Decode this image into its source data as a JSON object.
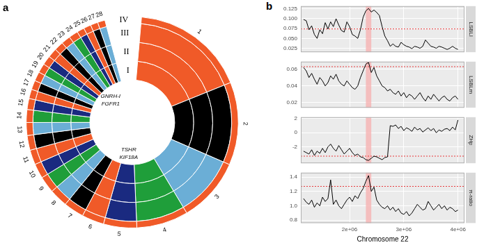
{
  "chart_data": [
    {
      "type": "doughnut",
      "title": "a",
      "categories": [
        "1",
        "2",
        "3",
        "4",
        "5",
        "6",
        "7",
        "8",
        "9",
        "10",
        "11",
        "12",
        "13",
        "14",
        "15",
        "16",
        "17",
        "18",
        "19",
        "20",
        "21",
        "22",
        "23",
        "24",
        "25",
        "26",
        "27",
        "28"
      ],
      "series": [
        {
          "name": "IV",
          "color": "#f05a28",
          "values": [
            62,
            45,
            35,
            28,
            18,
            12,
            11,
            10,
            9,
            8,
            8,
            8,
            7,
            7,
            6,
            5,
            5,
            5,
            5,
            5,
            5,
            5,
            5,
            5,
            4,
            4,
            4,
            4
          ]
        },
        {
          "name": "III",
          "colors": [
            "#f05a28",
            "#000000",
            "#6baed6",
            "#1f9e3a",
            "#1a2a80",
            "#f05a28",
            "#000000",
            "#6baed6",
            "#1f9e3a",
            "#1a2a80",
            "#f05a28",
            "#000000",
            "#6baed6",
            "#1f9e3a",
            "#1a2a80",
            "#f05a28",
            "#000000",
            "#6baed6",
            "#1f9e3a",
            "#1a2a80",
            "#f05a28",
            "#000000",
            "#6baed6",
            "#1f9e3a",
            "#1a2a80",
            "#f05a28",
            "#000000",
            "#6baed6"
          ],
          "values": [
            62,
            45,
            35,
            28,
            18,
            12,
            11,
            10,
            9,
            8,
            8,
            8,
            7,
            7,
            6,
            5,
            5,
            5,
            5,
            5,
            5,
            5,
            5,
            5,
            4,
            4,
            4,
            4
          ]
        },
        {
          "name": "II",
          "colors": [
            "#f05a28",
            "#000000",
            "#6baed6",
            "#1f9e3a",
            "#1a2a80",
            "#f05a28",
            "#000000",
            "#6baed6",
            "#1f9e3a",
            "#1a2a80",
            "#f05a28",
            "#000000",
            "#6baed6",
            "#1f9e3a",
            "#1a2a80",
            "#f05a28",
            "#000000",
            "#6baed6",
            "#1f9e3a",
            "#1a2a80",
            "#f05a28",
            "#000000",
            "#6baed6",
            "#1f9e3a",
            "#1a2a80",
            "#f05a28",
            "#000000",
            "#6baed6"
          ],
          "values": [
            62,
            45,
            35,
            28,
            18,
            12,
            11,
            10,
            9,
            8,
            8,
            8,
            7,
            7,
            6,
            5,
            5,
            5,
            5,
            5,
            5,
            5,
            5,
            5,
            4,
            4,
            4,
            4
          ]
        },
        {
          "name": "I",
          "colors": [
            "#f05a28",
            "#000000",
            "#6baed6",
            "#1f9e3a",
            "#1a2a80",
            "#f05a28",
            "#000000",
            "#6baed6",
            "#1f9e3a",
            "#1a2a80",
            "#f05a28",
            "#000000",
            "#6baed6",
            "#1f9e3a",
            "#1a2a80",
            "#f05a28",
            "#000000",
            "#6baed6",
            "#1f9e3a",
            "#1a2a80",
            "#f05a28",
            "#000000",
            "#6baed6",
            "#1f9e3a",
            "#1a2a80",
            "#f05a28",
            "#000000",
            "#6baed6"
          ],
          "values": [
            62,
            45,
            35,
            28,
            18,
            12,
            11,
            10,
            9,
            8,
            8,
            8,
            7,
            7,
            6,
            5,
            5,
            5,
            5,
            5,
            5,
            5,
            5,
            5,
            4,
            4,
            4,
            4
          ]
        }
      ],
      "annotations": [
        {
          "text": "GNRH-I",
          "category": "22"
        },
        {
          "text": "FGFR1",
          "category": "22"
        },
        {
          "text": "TSHR",
          "category": "5"
        },
        {
          "text": "KIF18A",
          "category": "5"
        }
      ]
    },
    {
      "type": "line",
      "title": "b",
      "ylabel": "LSBLl",
      "grid": true,
      "tick_labels": "y",
      "x": [
        1150000,
        1200000,
        1250000,
        1300000,
        1350000,
        1400000,
        1450000,
        1500000,
        1550000,
        1600000,
        1650000,
        1700000,
        1750000,
        1800000,
        1850000,
        1900000,
        1950000,
        2000000,
        2050000,
        2100000,
        2150000,
        2200000,
        2250000,
        2300000,
        2350000,
        2400000,
        2450000,
        2500000,
        2550000,
        2600000,
        2650000,
        2700000,
        2750000,
        2800000,
        2850000,
        2900000,
        2950000,
        3000000,
        3050000,
        3100000,
        3150000,
        3200000,
        3250000,
        3300000,
        3350000,
        3400000,
        3450000,
        3500000,
        3550000,
        3600000,
        3650000,
        3700000,
        3750000,
        3800000,
        3850000,
        3900000,
        3950000,
        4000000
      ],
      "series": [
        {
          "color": "#000000",
          "values": [
            0.098,
            0.095,
            0.072,
            0.082,
            0.06,
            0.05,
            0.072,
            0.062,
            0.09,
            0.074,
            0.092,
            0.08,
            0.1,
            0.084,
            0.07,
            0.066,
            0.092,
            0.08,
            0.06,
            0.056,
            0.05,
            0.072,
            0.104,
            0.12,
            0.126,
            0.117,
            0.122,
            0.116,
            0.108,
            0.08,
            0.056,
            0.044,
            0.03,
            0.036,
            0.03,
            0.028,
            0.04,
            0.034,
            0.03,
            0.028,
            0.024,
            0.03,
            0.028,
            0.025,
            0.03,
            0.046,
            0.038,
            0.03,
            0.028,
            0.025,
            0.03,
            0.028,
            0.025,
            0.022,
            0.025,
            0.03,
            0.025,
            0.022
          ]
        }
      ],
      "threshold": {
        "value": 0.074,
        "color": "#e8393b",
        "line_style": "dotted"
      },
      "highlight": {
        "range": [
          2300000,
          2400000
        ],
        "color": "#f6b3b3"
      },
      "xlim": [
        1100000,
        4120000
      ],
      "xticks": [
        {
          "value": 2000000,
          "label": "2e+06"
        },
        {
          "value": 3000000,
          "label": "3e+06"
        },
        {
          "value": 4000000,
          "label": "4e+06"
        }
      ],
      "ylim": [
        0.015,
        0.132
      ],
      "yticks": [
        0.025,
        {
          "value": 0.05,
          "label": "0.050"
        },
        0.075,
        {
          "value": 0.1,
          "label": "0.100"
        },
        0.125
      ]
    },
    {
      "type": "line",
      "ylabel": "LSBLm",
      "grid": true,
      "tick_labels": "y",
      "x": [
        1150000,
        1200000,
        1250000,
        1300000,
        1350000,
        1400000,
        1450000,
        1500000,
        1550000,
        1600000,
        1650000,
        1700000,
        1750000,
        1800000,
        1850000,
        1900000,
        1950000,
        2000000,
        2050000,
        2100000,
        2150000,
        2200000,
        2250000,
        2300000,
        2350000,
        2400000,
        2450000,
        2500000,
        2550000,
        2600000,
        2650000,
        2700000,
        2750000,
        2800000,
        2850000,
        2900000,
        2950000,
        3000000,
        3050000,
        3100000,
        3150000,
        3200000,
        3250000,
        3300000,
        3350000,
        3400000,
        3450000,
        3500000,
        3550000,
        3600000,
        3650000,
        3700000,
        3750000,
        3800000,
        3850000,
        3900000,
        3950000,
        4000000
      ],
      "series": [
        {
          "color": "#000000",
          "values": [
            0.062,
            0.058,
            0.05,
            0.055,
            0.048,
            0.042,
            0.05,
            0.046,
            0.04,
            0.044,
            0.052,
            0.048,
            0.054,
            0.046,
            0.042,
            0.04,
            0.046,
            0.042,
            0.038,
            0.036,
            0.04,
            0.05,
            0.058,
            0.066,
            0.068,
            0.056,
            0.062,
            0.052,
            0.046,
            0.04,
            0.038,
            0.034,
            0.036,
            0.032,
            0.03,
            0.034,
            0.028,
            0.032,
            0.026,
            0.03,
            0.028,
            0.024,
            0.028,
            0.032,
            0.026,
            0.022,
            0.028,
            0.024,
            0.03,
            0.026,
            0.022,
            0.026,
            0.028,
            0.024,
            0.022,
            0.026,
            0.028,
            0.024
          ]
        }
      ],
      "threshold": {
        "value": 0.063,
        "color": "#e8393b",
        "line_style": "dotted"
      },
      "highlight": {
        "range": [
          2300000,
          2400000
        ],
        "color": "#f6b3b3"
      },
      "xlim": [
        1100000,
        4120000
      ],
      "xticks": [
        {
          "value": 2000000,
          "label": "2e+06"
        },
        {
          "value": 3000000,
          "label": "3e+06"
        },
        {
          "value": 4000000,
          "label": "4e+06"
        }
      ],
      "ylim": [
        0.014,
        0.069
      ],
      "yticks": [
        0.02,
        0.04,
        0.06
      ]
    },
    {
      "type": "line",
      "ylabel": "ZHp",
      "grid": true,
      "tick_labels": "y",
      "x": [
        1150000,
        1200000,
        1250000,
        1300000,
        1350000,
        1400000,
        1450000,
        1500000,
        1550000,
        1600000,
        1650000,
        1700000,
        1750000,
        1800000,
        1850000,
        1900000,
        1950000,
        2000000,
        2050000,
        2100000,
        2150000,
        2200000,
        2250000,
        2300000,
        2350000,
        2400000,
        2450000,
        2500000,
        2550000,
        2600000,
        2650000,
        2700000,
        2750000,
        2800000,
        2850000,
        2900000,
        2950000,
        3000000,
        3050000,
        3100000,
        3150000,
        3200000,
        3250000,
        3300000,
        3350000,
        3400000,
        3450000,
        3500000,
        3550000,
        3600000,
        3650000,
        3700000,
        3750000,
        3800000,
        3850000,
        3900000,
        3950000,
        4000000
      ],
      "series": [
        {
          "color": "#000000",
          "values": [
            -2.6,
            -2.8,
            -3.0,
            -2.4,
            -3.2,
            -2.6,
            -2.9,
            -2.2,
            -2.8,
            -2.0,
            -1.6,
            -2.2,
            -2.6,
            -1.8,
            -2.4,
            -3.0,
            -2.6,
            -2.2,
            -2.8,
            -3.2,
            -3.0,
            -3.4,
            -3.5,
            -3.8,
            -3.9,
            -3.6,
            -3.3,
            -3.4,
            -3.6,
            -3.8,
            -3.5,
            -3.4,
            1.0,
            0.9,
            1.1,
            0.6,
            0.9,
            0.3,
            0.7,
            0.5,
            0.2,
            0.8,
            0.4,
            0.6,
            0.1,
            0.4,
            0.7,
            0.3,
            0.6,
            0.0,
            0.4,
            0.2,
            0.5,
            0.6,
            0.3,
            0.8,
            0.4,
            1.8
          ]
        }
      ],
      "threshold": {
        "value": -3.3,
        "color": "#e8393b",
        "line_style": "dotted"
      },
      "highlight": {
        "range": [
          2300000,
          2400000
        ],
        "color": "#f6b3b3"
      },
      "xlim": [
        1100000,
        4120000
      ],
      "xticks": [
        {
          "value": 2000000,
          "label": "2e+06"
        },
        {
          "value": 3000000,
          "label": "3e+06"
        },
        {
          "value": 4000000,
          "label": "4e+06"
        }
      ],
      "ylim": [
        -4.3,
        2.2
      ],
      "yticks": [
        -2,
        0,
        2
      ]
    },
    {
      "type": "line",
      "ylabel": "π-ratio",
      "xlabel": "Chromosome 22",
      "grid": true,
      "x": [
        1150000,
        1200000,
        1250000,
        1300000,
        1350000,
        1400000,
        1450000,
        1500000,
        1550000,
        1600000,
        1650000,
        1700000,
        1750000,
        1800000,
        1850000,
        1900000,
        1950000,
        2000000,
        2050000,
        2100000,
        2150000,
        2200000,
        2250000,
        2300000,
        2350000,
        2400000,
        2450000,
        2500000,
        2550000,
        2600000,
        2650000,
        2700000,
        2750000,
        2800000,
        2850000,
        2900000,
        2950000,
        3000000,
        3050000,
        3100000,
        3150000,
        3200000,
        3250000,
        3300000,
        3350000,
        3400000,
        3450000,
        3500000,
        3550000,
        3600000,
        3650000,
        3700000,
        3750000,
        3800000,
        3850000,
        3900000,
        3950000,
        4000000
      ],
      "series": [
        {
          "color": "#000000",
          "values": [
            1.1,
            1.05,
            1.02,
            1.08,
            0.98,
            1.04,
            1.0,
            1.12,
            1.06,
            1.1,
            1.36,
            1.02,
            1.08,
            1.0,
            0.96,
            1.02,
            1.08,
            1.12,
            1.06,
            1.14,
            1.1,
            1.18,
            1.24,
            1.34,
            1.42,
            1.2,
            1.26,
            1.08,
            1.02,
            0.98,
            0.96,
            1.0,
            0.94,
            0.98,
            0.92,
            0.96,
            0.9,
            0.88,
            0.92,
            0.86,
            0.9,
            0.96,
            1.02,
            0.98,
            0.94,
            0.96,
            1.06,
            1.0,
            0.94,
            0.98,
            1.02,
            0.96,
            1.0,
            0.94,
            0.98,
            0.96,
            0.92,
            0.94
          ]
        }
      ],
      "threshold": {
        "value": 1.27,
        "color": "#e8393b",
        "line_style": "dotted"
      },
      "highlight": {
        "range": [
          2300000,
          2400000
        ],
        "color": "#f6b3b3"
      },
      "xlim": [
        1100000,
        4120000
      ],
      "xticks": [
        {
          "value": 2000000,
          "label": "2e+06"
        },
        {
          "value": 3000000,
          "label": "3e+06"
        },
        {
          "value": 4000000,
          "label": "4e+06"
        }
      ],
      "ylim": [
        0.76,
        1.46
      ],
      "yticks": [
        0.8,
        {
          "value": 1.0,
          "label": "1.0"
        },
        1.2,
        1.4
      ]
    }
  ]
}
